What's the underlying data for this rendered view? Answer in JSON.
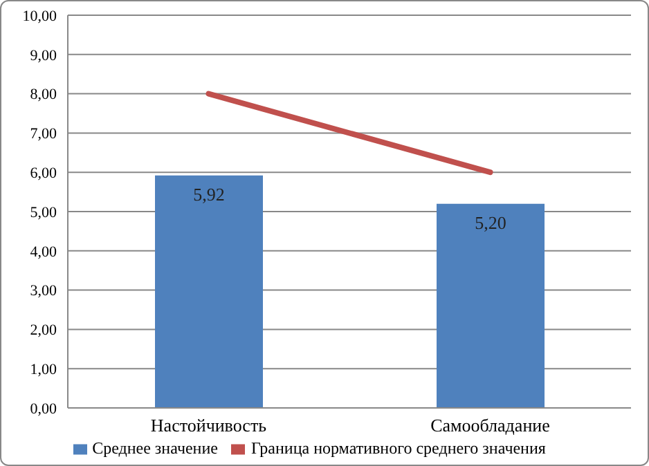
{
  "chart_data": {
    "type": "bar",
    "categories": [
      "Настойчивость",
      "Самообладание"
    ],
    "series": [
      {
        "name": "Среднее значение",
        "color": "#4f81bd",
        "values": [
          5.92,
          5.2
        ],
        "value_labels": [
          "5,92",
          "5,20"
        ]
      },
      {
        "name": "Граница нормативного среднего значения",
        "type": "line",
        "color": "#c0504d",
        "values": [
          8.0,
          6.0
        ]
      }
    ],
    "ylim": [
      0,
      10
    ],
    "yticks": [
      {
        "value": 0,
        "label": "0,00"
      },
      {
        "value": 1,
        "label": "1,00"
      },
      {
        "value": 2,
        "label": "2,00"
      },
      {
        "value": 3,
        "label": "3,00"
      },
      {
        "value": 4,
        "label": "4,00"
      },
      {
        "value": 5,
        "label": "5,00"
      },
      {
        "value": 6,
        "label": "6,00"
      },
      {
        "value": 7,
        "label": "7,00"
      },
      {
        "value": 8,
        "label": "8,00"
      },
      {
        "value": 9,
        "label": "9,00"
      },
      {
        "value": 10,
        "label": "10,00"
      }
    ],
    "grid": "y",
    "legend": "bottom",
    "marker": "none"
  }
}
